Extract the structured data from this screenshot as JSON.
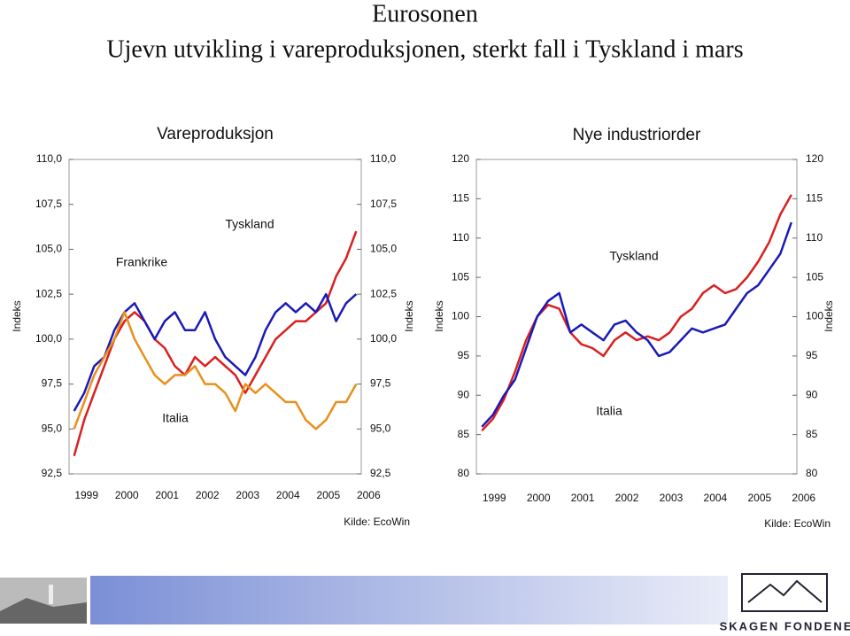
{
  "slide": {
    "title": "Eurosonen",
    "subtitle": "Ujevn utvikling i vareproduksjonen, sterkt fall i Tyskland i mars"
  },
  "footer": {
    "brand": "SKAGEN FONDENE"
  },
  "chart_data": [
    {
      "type": "line",
      "title": "Vareproduksjon",
      "y_label": "Indeks",
      "source": "Kilde: EcoWin",
      "categories": [
        "1999",
        null,
        null,
        null,
        "2000",
        null,
        null,
        null,
        "2001",
        null,
        null,
        null,
        "2002",
        null,
        null,
        null,
        "2003",
        null,
        null,
        null,
        "2004",
        null,
        null,
        null,
        "2005",
        null,
        null,
        null,
        "2006"
      ],
      "ylim": [
        92.5,
        110
      ],
      "yticks": [
        {
          "value": 92.5,
          "label": "92,5"
        },
        {
          "value": 95,
          "label": "95,0"
        },
        {
          "value": 97.5,
          "label": "97,5"
        },
        {
          "value": 100,
          "label": "100,0"
        },
        {
          "value": 102.5,
          "label": "102,5"
        },
        {
          "value": 105,
          "label": "105,0"
        },
        {
          "value": 107.5,
          "label": "107,5"
        },
        {
          "value": 110,
          "label": "110,0"
        }
      ],
      "series": [
        {
          "name": "Tyskland",
          "color": "#d92020",
          "values": [
            93.5,
            95.5,
            97,
            98.5,
            100,
            101,
            101.5,
            101,
            100,
            99.5,
            98.5,
            98,
            99,
            98.5,
            99,
            98.5,
            98,
            97,
            98,
            99,
            100,
            100.5,
            101,
            101,
            101.5,
            102,
            103.5,
            104.5,
            106
          ]
        },
        {
          "name": "Frankrike",
          "color": "#1a1ab8",
          "values": [
            96,
            97,
            98.5,
            99,
            100.5,
            101.5,
            102,
            101,
            100,
            101,
            101.5,
            100.5,
            100.5,
            101.5,
            100,
            99,
            98.5,
            98,
            99,
            100.5,
            101.5,
            102,
            101.5,
            102,
            101.5,
            102.5,
            101,
            102,
            102.5
          ]
        },
        {
          "name": "Italia",
          "color": "#e8901c",
          "values": [
            95,
            96.5,
            98,
            99,
            100,
            101.5,
            100,
            99,
            98,
            97.5,
            98,
            98,
            98.5,
            97.5,
            97.5,
            97,
            96,
            97.5,
            97,
            97.5,
            97,
            96.5,
            96.5,
            95.5,
            95,
            95.5,
            96.5,
            96.5,
            97.5
          ]
        }
      ]
    },
    {
      "type": "line",
      "title": "Nye industriorder",
      "y_label": "Indeks",
      "source": "Kilde: EcoWin",
      "categories": [
        "1999",
        null,
        null,
        null,
        "2000",
        null,
        null,
        null,
        "2001",
        null,
        null,
        null,
        "2002",
        null,
        null,
        null,
        "2003",
        null,
        null,
        null,
        "2004",
        null,
        null,
        null,
        "2005",
        null,
        null,
        null,
        "2006"
      ],
      "ylim": [
        80,
        120
      ],
      "yticks": [
        80,
        85,
        90,
        95,
        100,
        105,
        110,
        115,
        120
      ],
      "series": [
        {
          "name": "Tyskland",
          "color": "#d92020",
          "values": [
            85.5,
            87,
            89.5,
            93,
            97,
            100,
            101.5,
            101,
            98,
            96.5,
            96,
            95,
            97,
            98,
            97,
            97.5,
            97,
            98,
            100,
            101,
            103,
            104,
            103,
            103.5,
            105,
            107,
            109.5,
            113,
            115.5
          ]
        },
        {
          "name": "Italia",
          "color": "#1a1ab8",
          "values": [
            86,
            87.5,
            90,
            92,
            96,
            100,
            102,
            103,
            98,
            99,
            98,
            97,
            99,
            99.5,
            98,
            97,
            95,
            95.5,
            97,
            98.5,
            98,
            98.5,
            99,
            101,
            103,
            104,
            106,
            108,
            112
          ]
        }
      ]
    }
  ]
}
